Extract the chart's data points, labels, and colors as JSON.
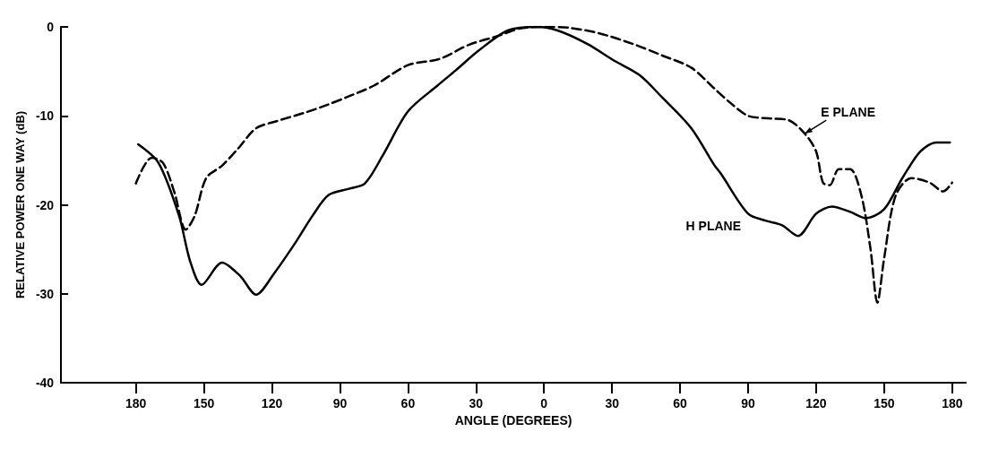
{
  "chart_data": {
    "type": "line",
    "xlabel": "ANGLE (DEGREES)",
    "ylabel": "RELATIVE POWER ONE WAY (dB)",
    "xlim": [
      -213,
      186
    ],
    "ylim": [
      -40,
      0
    ],
    "xticks": [
      {
        "value": -180,
        "label": "180"
      },
      {
        "value": -150,
        "label": "150"
      },
      {
        "value": -120,
        "label": "120"
      },
      {
        "value": -90,
        "label": "90"
      },
      {
        "value": -60,
        "label": "60"
      },
      {
        "value": -30,
        "label": "30"
      },
      0,
      30,
      60,
      90,
      120,
      150,
      180
    ],
    "yticks": [
      0,
      -10,
      -20,
      -30,
      -40
    ],
    "grid": false,
    "legend": false,
    "marker": "none",
    "series": [
      {
        "name": "H PLANE",
        "color": "#000000",
        "line_style": "solid",
        "x": [
          -179,
          -170,
          -161,
          -156,
          -151,
          -142,
          -134,
          -127,
          -119,
          -110,
          -102,
          -95,
          -86,
          -79,
          -71,
          -60,
          -47,
          -39,
          -29,
          -16,
          -3,
          6,
          19,
          31,
          42,
          52,
          65,
          75,
          78,
          90,
          98,
          105,
          112,
          120,
          127,
          135,
          142,
          150,
          158,
          166,
          173,
          179
        ],
        "values": [
          -13.2,
          -15.3,
          -21.2,
          -26.4,
          -29,
          -26.5,
          -28,
          -30.1,
          -27.7,
          -24.4,
          -21.2,
          -18.9,
          -18.2,
          -17.6,
          -14.4,
          -9.5,
          -6.6,
          -4.9,
          -2.7,
          -0.4,
          0,
          -0.4,
          -1.9,
          -3.8,
          -5.4,
          -7.9,
          -11.4,
          -15.5,
          -16.5,
          -21,
          -21.8,
          -22.3,
          -23.5,
          -21,
          -20.2,
          -20.8,
          -21.5,
          -20.5,
          -17,
          -14,
          -13,
          -13
        ]
      },
      {
        "name": "E PLANE",
        "color": "#000000",
        "line_style": "dashed",
        "x": [
          -180,
          -173,
          -168,
          -163,
          -158,
          -154,
          -149,
          -142,
          -135,
          -127,
          -118,
          -105,
          -96,
          -87,
          -75,
          -60,
          -46,
          -33,
          -20,
          -11,
          0,
          11,
          24,
          39,
          52,
          65,
          75,
          82,
          90,
          100,
          108,
          115,
          120,
          123,
          126,
          130,
          135,
          140,
          144,
          147,
          150,
          155,
          162,
          170,
          176,
          180
        ],
        "values": [
          -17.6,
          -14.7,
          -15.3,
          -18.6,
          -22.8,
          -21.2,
          -17,
          -15.6,
          -13.7,
          -11.4,
          -10.6,
          -9.6,
          -8.8,
          -7.9,
          -6.6,
          -4.3,
          -3.6,
          -2,
          -1,
          -0.2,
          0,
          -0.1,
          -0.7,
          -1.9,
          -3.2,
          -4.6,
          -6.9,
          -8.5,
          -10,
          -10.3,
          -10.5,
          -12,
          -14,
          -17.5,
          -17.8,
          -16,
          -16,
          -19,
          -25,
          -31,
          -26,
          -19,
          -17,
          -17.5,
          -18.5,
          -17.5
        ]
      }
    ]
  }
}
